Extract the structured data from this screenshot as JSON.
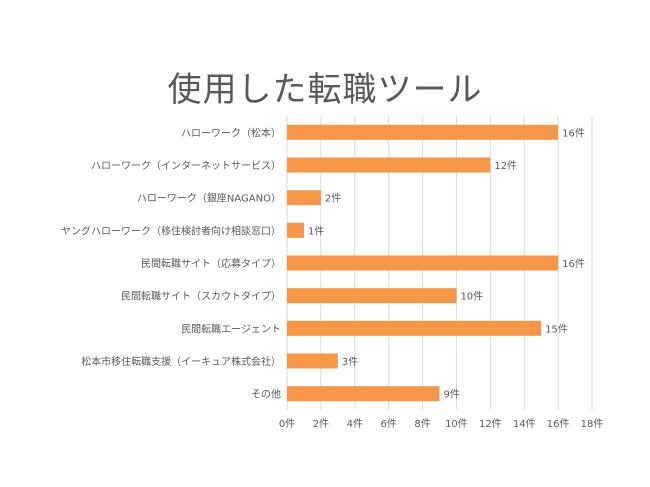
{
  "chart_data": {
    "type": "bar",
    "orientation": "horizontal",
    "title": "使用した転職ツール",
    "categories": [
      "ハローワーク（松本）",
      "ハローワーク（インターネットサービス）",
      "ハローワーク（銀座NAGANO）",
      "ヤングハローワーク（移住検討者向け相談窓口）",
      "民間転職サイト（応募タイプ）",
      "民間転職サイト（スカウトタイプ）",
      "民間転職エージェント",
      "松本市移住転職支援（イーキュア株式会社）",
      "その他"
    ],
    "values": [
      16,
      12,
      2,
      1,
      16,
      10,
      15,
      3,
      9
    ],
    "data_labels": [
      "16件",
      "12件",
      "2件",
      "1件",
      "16件",
      "10件",
      "15件",
      "3件",
      "9件"
    ],
    "xlim": [
      0,
      18
    ],
    "xticks": [
      "0件",
      "2件",
      "4件",
      "6件",
      "8件",
      "10件",
      "12件",
      "14件",
      "16件",
      "18件"
    ],
    "grid": true,
    "bar_color": "#F79646"
  }
}
